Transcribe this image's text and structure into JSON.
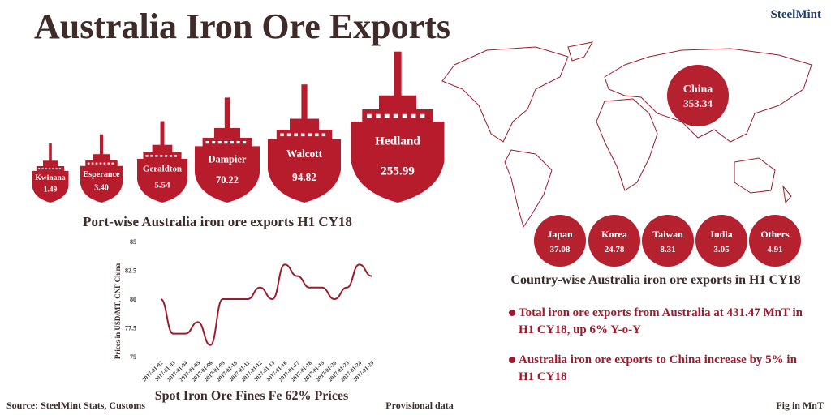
{
  "title": "Australia Iron Ore Exports",
  "logo": "SteelMint",
  "chart_data": [
    {
      "type": "ship",
      "title": "Port-wise Australia iron ore exports H1 CY18",
      "categories": [
        "Kwinana",
        "Esperance",
        "Geraldton",
        "Dampier",
        "Walcott",
        "Hedland"
      ],
      "values": [
        1.49,
        3.4,
        5.54,
        70.22,
        94.82,
        255.99
      ],
      "value_labels": [
        "1.49",
        "3.40",
        "5.54",
        "70.22",
        "94.82",
        "255.99"
      ],
      "color": "#b71c2c"
    },
    {
      "type": "line",
      "title": "Spot Iron Ore Fines Fe 62% Prices",
      "y_label": "Prices in USD/MT, CNF China",
      "categories": [
        "2017-01-02",
        "2017-01-03",
        "2017-01-04",
        "2017-01-05",
        "2017-01-06",
        "2017-01-09",
        "2017-01-10",
        "2017-01-11",
        "2017-01-12",
        "2017-01-13",
        "2017-01-16",
        "2017-01-17",
        "2017-01-18",
        "2017-01-19",
        "2017-01-20",
        "2017-01-23",
        "2017-01-24",
        "2017-01-25"
      ],
      "values": [
        80,
        77,
        77,
        78,
        76,
        80,
        80,
        80,
        81,
        80,
        83,
        82,
        81,
        81,
        80,
        81,
        83,
        82
      ],
      "color": "#9e1b2b",
      "ylim": [
        75,
        85
      ],
      "yticks": [
        75,
        77.5,
        80,
        82.5,
        85
      ],
      "grid": false
    },
    {
      "type": "circle",
      "title": "Country-wise Australia iron ore exports in H1 CY18",
      "categories": [
        "China",
        "Japan",
        "Korea",
        "Taiwan",
        "India",
        "Others"
      ],
      "values": [
        353.34,
        37.08,
        24.78,
        8.31,
        3.05,
        4.91
      ],
      "color": "#b5212f"
    }
  ],
  "notes": [
    "Total iron ore exports from Australia at 431.47 MnT in H1 CY18, up 6% Y-o-Y",
    "Australia iron ore exports to China increase by 5% in H1 CY18"
  ],
  "footer": {
    "source": "Source: SteelMint Stats, Customs",
    "provisional": "Provisional data",
    "unit": "Fig in MnT"
  }
}
